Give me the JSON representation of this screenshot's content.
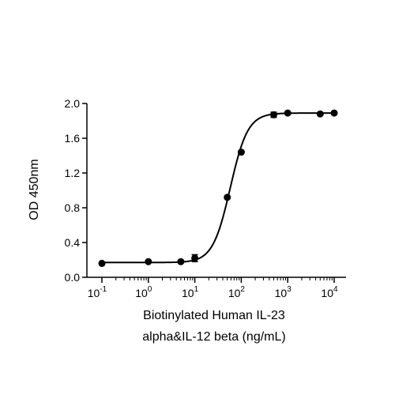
{
  "chart_data": {
    "type": "scatter",
    "xscale": "log",
    "xlim": [
      0.1,
      10000
    ],
    "ylim": [
      0,
      2.0
    ],
    "x_tick_values": [
      0.1,
      1,
      10,
      100,
      1000,
      10000
    ],
    "x_tick_labels": [
      {
        "base": "10",
        "exp": "-1"
      },
      {
        "base": "10",
        "exp": "0"
      },
      {
        "base": "10",
        "exp": "1"
      },
      {
        "base": "10",
        "exp": "2"
      },
      {
        "base": "10",
        "exp": "3"
      },
      {
        "base": "10",
        "exp": "4"
      }
    ],
    "y_ticks": [
      0.0,
      0.4,
      0.8,
      1.2,
      1.6,
      2.0
    ],
    "y_tick_labels": [
      "0.0",
      "0.4",
      "0.8",
      "1.2",
      "1.6",
      "2.0"
    ],
    "xlabel_lines": [
      "Biotinylated Human IL-23",
      "alpha&IL-12 beta (ng/mL)"
    ],
    "ylabel": "OD 450nm",
    "grid": false,
    "legend": "none",
    "points": [
      {
        "x": 0.1,
        "y": 0.16,
        "err": 0.01
      },
      {
        "x": 1,
        "y": 0.18,
        "err": 0.01
      },
      {
        "x": 5,
        "y": 0.18,
        "err": 0.01
      },
      {
        "x": 10,
        "y": 0.22,
        "err": 0.04
      },
      {
        "x": 50,
        "y": 0.92,
        "err": 0.01
      },
      {
        "x": 100,
        "y": 1.44,
        "err": 0.01
      },
      {
        "x": 500,
        "y": 1.87,
        "err": 0.03
      },
      {
        "x": 1000,
        "y": 1.89,
        "err": 0.01
      },
      {
        "x": 5000,
        "y": 1.88,
        "err": 0.01
      },
      {
        "x": 10000,
        "y": 1.89,
        "err": 0.01
      }
    ],
    "fit_curve": {
      "model": "4PL",
      "bottom": 0.17,
      "top": 1.89,
      "ec50": 58,
      "hill": 2.3
    },
    "colors": {
      "marker": "#000000",
      "line": "#000000",
      "axis": "#000000"
    }
  }
}
